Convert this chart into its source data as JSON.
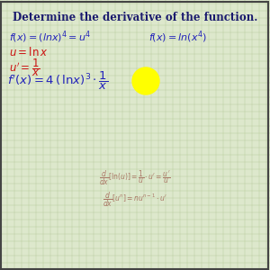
{
  "title": "Determine the derivative of the function.",
  "bg_color": "#dde8cc",
  "grid_color": "#b8cca0",
  "title_color": "#1a1a6e",
  "blue_color": "#2222bb",
  "red_color": "#cc1111",
  "ref_color": "#aa7766",
  "figsize": [
    3.0,
    3.0
  ],
  "dpi": 100,
  "line1_left": "f(x) = (lnx)^4 = u^4",
  "line1_right": "f(x) = ln(x^4)",
  "line2": "u = ln x",
  "line3": "u' = 1/x",
  "line4": "f'(x) = 4(lnx)^3 * 1/x",
  "ref1": "d/dx [ln(u)] = 1/u * u' = u'/u",
  "ref2": "d/dx [u^n] = nu^(n-1) * u'"
}
